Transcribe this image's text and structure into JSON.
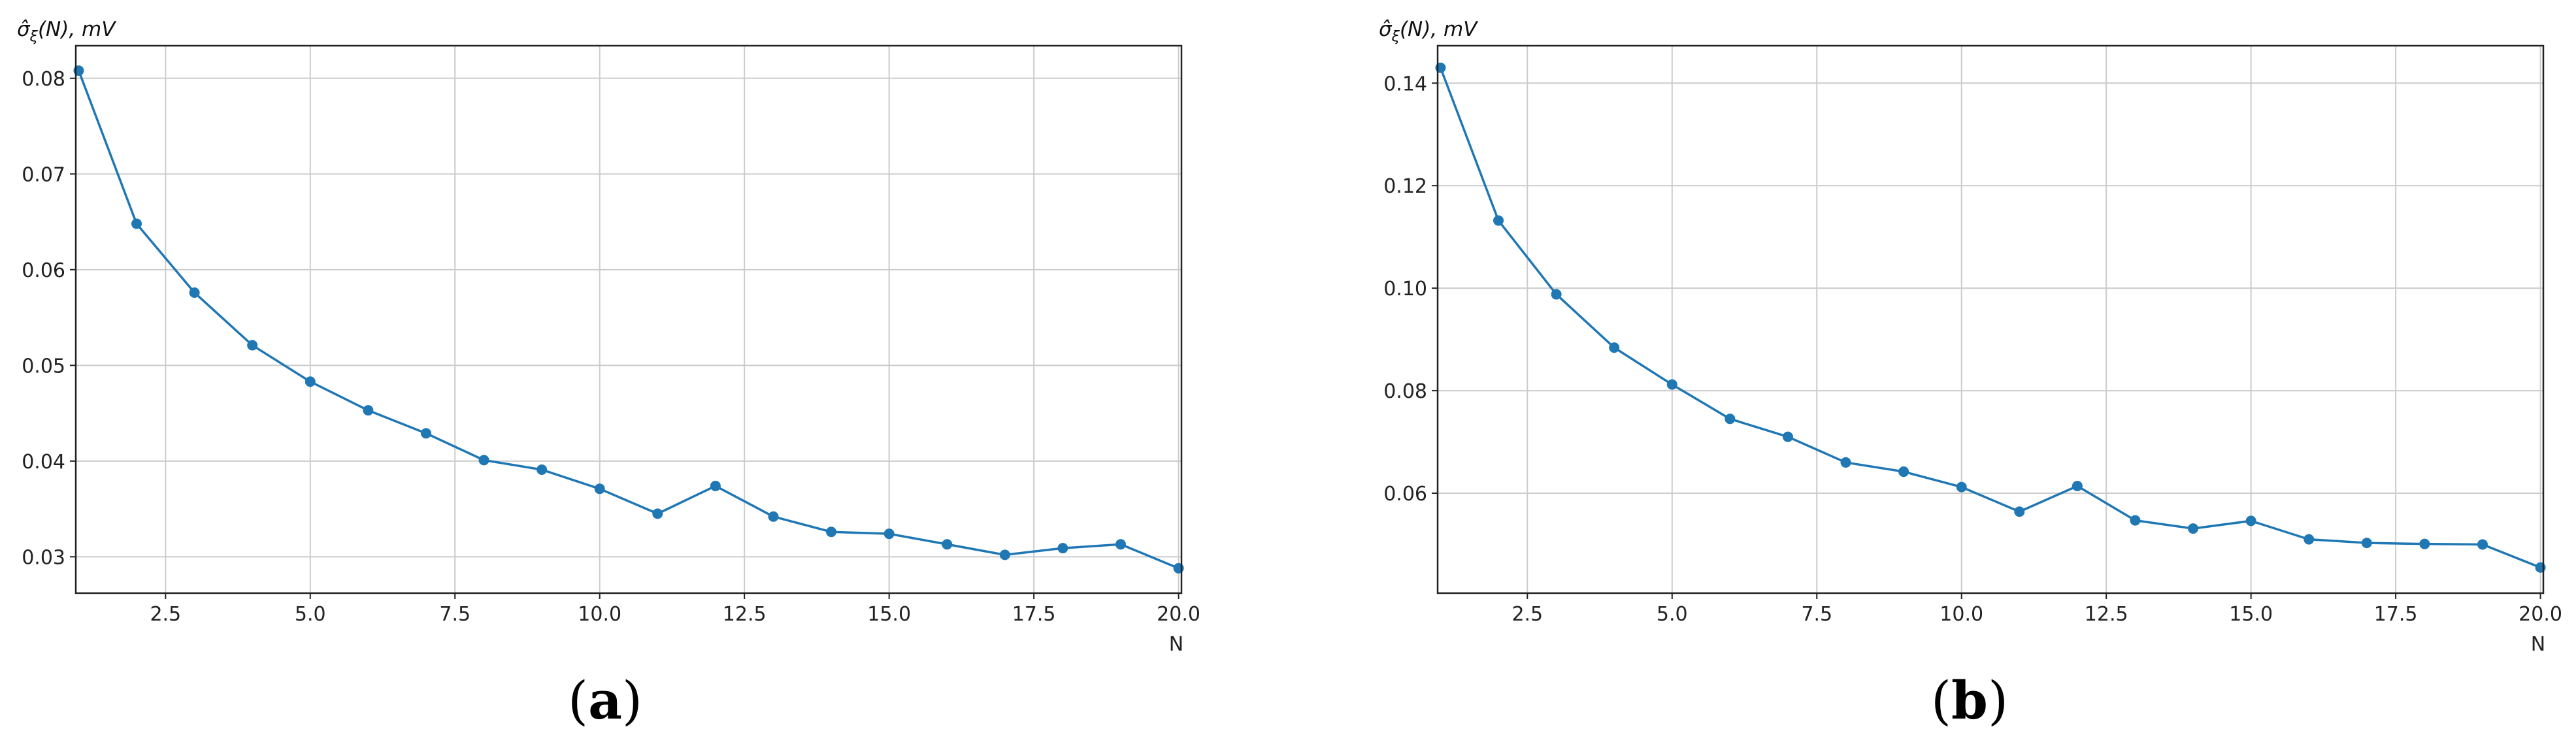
{
  "chart_data": [
    {
      "type": "line",
      "caption": "(a)",
      "caption_letter": "a",
      "ylabel_symbol": "σ̂",
      "ylabel_subscript": "ξ",
      "ylabel_rest": "(N), mV",
      "xlabel": "N",
      "xlim": [
        0.95,
        20.05
      ],
      "ylim": [
        0.0262,
        0.0834
      ],
      "xticks": [
        "2.5",
        "5.0",
        "7.5",
        "10.0",
        "12.5",
        "15.0",
        "17.5",
        "20.0"
      ],
      "yticks": [
        "0.03",
        "0.04",
        "0.05",
        "0.06",
        "0.07",
        "0.08"
      ],
      "grid": true,
      "color": "#1f77b4",
      "series": [
        {
          "x": [
            1,
            2,
            3,
            4,
            5,
            6,
            7,
            8,
            9,
            10,
            11,
            12,
            13,
            14,
            15,
            16,
            17,
            18,
            19,
            20
          ],
          "y": [
            0.0808,
            0.0648,
            0.0576,
            0.0521,
            0.0483,
            0.0453,
            0.0429,
            0.0401,
            0.0391,
            0.0371,
            0.0345,
            0.0374,
            0.0342,
            0.0326,
            0.0324,
            0.0313,
            0.0302,
            0.0309,
            0.0313,
            0.0288
          ]
        }
      ]
    },
    {
      "type": "line",
      "caption": "(b)",
      "caption_letter": "b",
      "ylabel_symbol": "σ̂",
      "ylabel_subscript": "ξ",
      "ylabel_rest": "(N), mV",
      "xlabel": "N",
      "xlim": [
        0.95,
        20.05
      ],
      "ylim": [
        0.0405,
        0.1473
      ],
      "xticks": [
        "2.5",
        "5.0",
        "7.5",
        "10.0",
        "12.5",
        "15.0",
        "17.5",
        "20.0"
      ],
      "yticks": [
        "0.06",
        "0.08",
        "0.10",
        "0.12",
        "0.14"
      ],
      "grid": true,
      "color": "#1f77b4",
      "series": [
        {
          "x": [
            1,
            2,
            3,
            4,
            5,
            6,
            7,
            8,
            9,
            10,
            11,
            12,
            13,
            14,
            15,
            16,
            17,
            18,
            19,
            20
          ],
          "y": [
            0.143,
            0.1132,
            0.0988,
            0.0884,
            0.0812,
            0.0745,
            0.071,
            0.066,
            0.0642,
            0.0612,
            0.0564,
            0.0614,
            0.0547,
            0.0531,
            0.0546,
            0.051,
            0.0503,
            0.0501,
            0.05,
            0.0455
          ]
        }
      ]
    }
  ]
}
